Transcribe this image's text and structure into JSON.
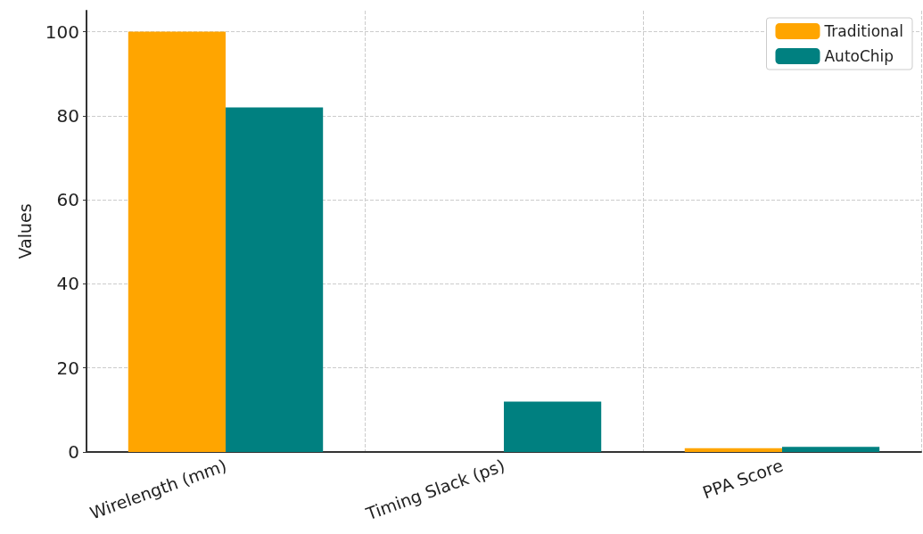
{
  "chart_data": {
    "type": "bar",
    "ylabel": "Values",
    "categories": [
      "Wirelength (mm)",
      "Timing Slack (ps)",
      "PPA Score"
    ],
    "series": [
      {
        "name": "Traditional",
        "color": "#ffa500",
        "values": [
          100,
          0,
          0.9
        ]
      },
      {
        "name": "AutoChip",
        "color": "#008080",
        "values": [
          82,
          12,
          1.2
        ]
      }
    ],
    "ylim": [
      0,
      105
    ],
    "yticks": [
      0,
      20,
      40,
      60,
      80,
      100
    ],
    "grid": true,
    "legend": "top right"
  }
}
